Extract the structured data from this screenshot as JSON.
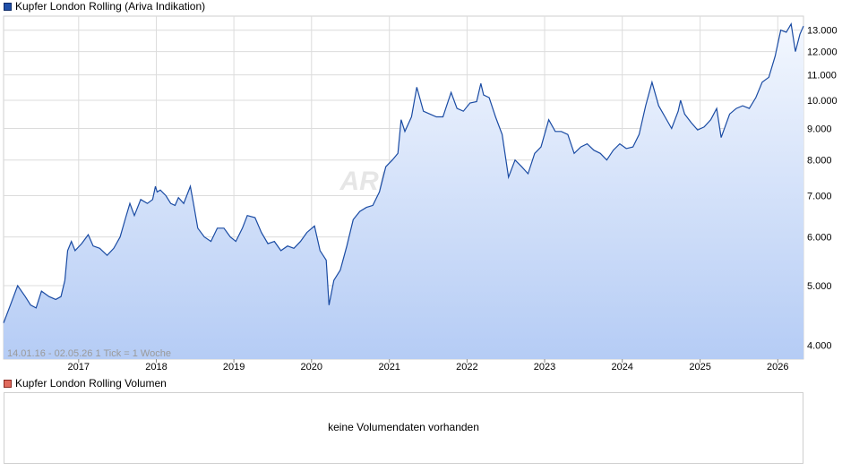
{
  "price_legend": "Kupfer London Rolling (Ariva Indikation)",
  "volume_legend": "Kupfer London Rolling Volumen",
  "watermark": "ARIVA.DE",
  "range_note": "14.01.16 - 02.05.26   1 Tick = 1 Woche",
  "no_volume_text": "keine Volumendaten vorhanden",
  "colors": {
    "line": "#1a4ba3",
    "fill_top": "#f3f7fe",
    "fill_bottom": "#b5ccf5",
    "grid": "#dcdcdc"
  },
  "chart_data": {
    "type": "area",
    "y_scale": "log",
    "ylim": [
      3800,
      13700
    ],
    "xlim": [
      "2016-01-14",
      "2026-05-02"
    ],
    "grid": true,
    "y_ticks": [
      {
        "value": 4000,
        "label": "4.000"
      },
      {
        "value": 5000,
        "label": "5.000"
      },
      {
        "value": 6000,
        "label": "6.000"
      },
      {
        "value": 7000,
        "label": "7.000"
      },
      {
        "value": 8000,
        "label": "8.000"
      },
      {
        "value": 9000,
        "label": "9.000"
      },
      {
        "value": 10000,
        "label": "10.000"
      },
      {
        "value": 11000,
        "label": "11.000"
      },
      {
        "value": 12000,
        "label": "12.000"
      },
      {
        "value": 13000,
        "label": "13.000"
      }
    ],
    "x_ticks": [
      {
        "date": "2017-01-01",
        "label": "2017"
      },
      {
        "date": "2018-01-01",
        "label": "2018"
      },
      {
        "date": "2019-01-01",
        "label": "2019"
      },
      {
        "date": "2020-01-01",
        "label": "2020"
      },
      {
        "date": "2021-01-01",
        "label": "2021"
      },
      {
        "date": "2022-01-01",
        "label": "2022"
      },
      {
        "date": "2023-01-01",
        "label": "2023"
      },
      {
        "date": "2024-01-01",
        "label": "2024"
      },
      {
        "date": "2025-01-01",
        "label": "2025"
      },
      {
        "date": "2026-01-01",
        "label": "2026"
      }
    ],
    "series": [
      {
        "points": [
          [
            "2016-01-14",
            4350
          ],
          [
            "2016-02-15",
            4650
          ],
          [
            "2016-03-20",
            5000
          ],
          [
            "2016-04-25",
            4800
          ],
          [
            "2016-05-20",
            4650
          ],
          [
            "2016-06-15",
            4600
          ],
          [
            "2016-07-10",
            4900
          ],
          [
            "2016-08-15",
            4800
          ],
          [
            "2016-09-15",
            4750
          ],
          [
            "2016-10-10",
            4800
          ],
          [
            "2016-10-28",
            5100
          ],
          [
            "2016-11-10",
            5700
          ],
          [
            "2016-11-28",
            5900
          ],
          [
            "2016-12-15",
            5700
          ],
          [
            "2017-01-15",
            5850
          ],
          [
            "2017-02-15",
            6050
          ],
          [
            "2017-03-10",
            5800
          ],
          [
            "2017-04-10",
            5750
          ],
          [
            "2017-05-15",
            5600
          ],
          [
            "2017-06-15",
            5750
          ],
          [
            "2017-07-15",
            6000
          ],
          [
            "2017-08-10",
            6450
          ],
          [
            "2017-08-30",
            6800
          ],
          [
            "2017-09-20",
            6500
          ],
          [
            "2017-10-20",
            6900
          ],
          [
            "2017-11-20",
            6800
          ],
          [
            "2017-12-15",
            6900
          ],
          [
            "2017-12-28",
            7250
          ],
          [
            "2018-01-05",
            7100
          ],
          [
            "2018-01-20",
            7150
          ],
          [
            "2018-02-15",
            7000
          ],
          [
            "2018-03-10",
            6800
          ],
          [
            "2018-03-30",
            6750
          ],
          [
            "2018-04-15",
            6950
          ],
          [
            "2018-05-10",
            6800
          ],
          [
            "2018-06-10",
            7250
          ],
          [
            "2018-06-25",
            6800
          ],
          [
            "2018-07-15",
            6200
          ],
          [
            "2018-08-15",
            6000
          ],
          [
            "2018-09-15",
            5900
          ],
          [
            "2018-10-15",
            6200
          ],
          [
            "2018-11-15",
            6200
          ],
          [
            "2018-12-15",
            6000
          ],
          [
            "2019-01-10",
            5900
          ],
          [
            "2019-02-10",
            6200
          ],
          [
            "2019-03-05",
            6500
          ],
          [
            "2019-04-10",
            6450
          ],
          [
            "2019-05-10",
            6100
          ],
          [
            "2019-06-10",
            5850
          ],
          [
            "2019-07-10",
            5900
          ],
          [
            "2019-08-10",
            5700
          ],
          [
            "2019-09-10",
            5800
          ],
          [
            "2019-10-10",
            5750
          ],
          [
            "2019-11-10",
            5900
          ],
          [
            "2019-12-10",
            6100
          ],
          [
            "2020-01-15",
            6250
          ],
          [
            "2020-02-10",
            5700
          ],
          [
            "2020-03-10",
            5500
          ],
          [
            "2020-03-23",
            4650
          ],
          [
            "2020-04-15",
            5100
          ],
          [
            "2020-05-15",
            5300
          ],
          [
            "2020-06-15",
            5800
          ],
          [
            "2020-07-15",
            6400
          ],
          [
            "2020-08-15",
            6600
          ],
          [
            "2020-09-15",
            6700
          ],
          [
            "2020-10-15",
            6750
          ],
          [
            "2020-11-15",
            7100
          ],
          [
            "2020-12-15",
            7800
          ],
          [
            "2021-01-15",
            8000
          ],
          [
            "2021-02-10",
            8200
          ],
          [
            "2021-02-25",
            9300
          ],
          [
            "2021-03-15",
            8900
          ],
          [
            "2021-04-15",
            9400
          ],
          [
            "2021-05-10",
            10500
          ],
          [
            "2021-06-10",
            9600
          ],
          [
            "2021-07-10",
            9500
          ],
          [
            "2021-08-10",
            9400
          ],
          [
            "2021-09-10",
            9400
          ],
          [
            "2021-10-18",
            10300
          ],
          [
            "2021-11-15",
            9700
          ],
          [
            "2021-12-15",
            9600
          ],
          [
            "2022-01-15",
            9900
          ],
          [
            "2022-02-15",
            9950
          ],
          [
            "2022-03-07",
            10650
          ],
          [
            "2022-03-20",
            10200
          ],
          [
            "2022-04-15",
            10100
          ],
          [
            "2022-05-15",
            9400
          ],
          [
            "2022-06-15",
            8800
          ],
          [
            "2022-07-15",
            7500
          ],
          [
            "2022-08-15",
            8000
          ],
          [
            "2022-09-15",
            7800
          ],
          [
            "2022-10-15",
            7600
          ],
          [
            "2022-11-15",
            8200
          ],
          [
            "2022-12-15",
            8400
          ],
          [
            "2023-01-20",
            9300
          ],
          [
            "2023-02-20",
            8900
          ],
          [
            "2023-03-20",
            8900
          ],
          [
            "2023-04-20",
            8800
          ],
          [
            "2023-05-20",
            8200
          ],
          [
            "2023-06-20",
            8400
          ],
          [
            "2023-07-20",
            8500
          ],
          [
            "2023-08-20",
            8300
          ],
          [
            "2023-09-20",
            8200
          ],
          [
            "2023-10-20",
            8000
          ],
          [
            "2023-11-20",
            8300
          ],
          [
            "2023-12-20",
            8500
          ],
          [
            "2024-01-20",
            8350
          ],
          [
            "2024-02-20",
            8400
          ],
          [
            "2024-03-20",
            8800
          ],
          [
            "2024-04-20",
            9800
          ],
          [
            "2024-05-20",
            10700
          ],
          [
            "2024-06-20",
            9800
          ],
          [
            "2024-07-20",
            9400
          ],
          [
            "2024-08-20",
            9000
          ],
          [
            "2024-09-20",
            9600
          ],
          [
            "2024-10-01",
            10000
          ],
          [
            "2024-10-20",
            9500
          ],
          [
            "2024-11-20",
            9200
          ],
          [
            "2024-12-20",
            8950
          ],
          [
            "2025-01-20",
            9050
          ],
          [
            "2025-02-20",
            9300
          ],
          [
            "2025-03-20",
            9700
          ],
          [
            "2025-04-10",
            8700
          ],
          [
            "2025-05-20",
            9500
          ],
          [
            "2025-06-20",
            9700
          ],
          [
            "2025-07-20",
            9800
          ],
          [
            "2025-08-20",
            9700
          ],
          [
            "2025-09-20",
            10100
          ],
          [
            "2025-10-20",
            10700
          ],
          [
            "2025-11-20",
            10900
          ],
          [
            "2025-12-20",
            11800
          ],
          [
            "2026-01-15",
            13000
          ],
          [
            "2026-02-10",
            12900
          ],
          [
            "2026-03-05",
            13300
          ],
          [
            "2026-03-25",
            12000
          ],
          [
            "2026-04-15",
            12800
          ],
          [
            "2026-05-02",
            13200
          ]
        ]
      }
    ]
  }
}
